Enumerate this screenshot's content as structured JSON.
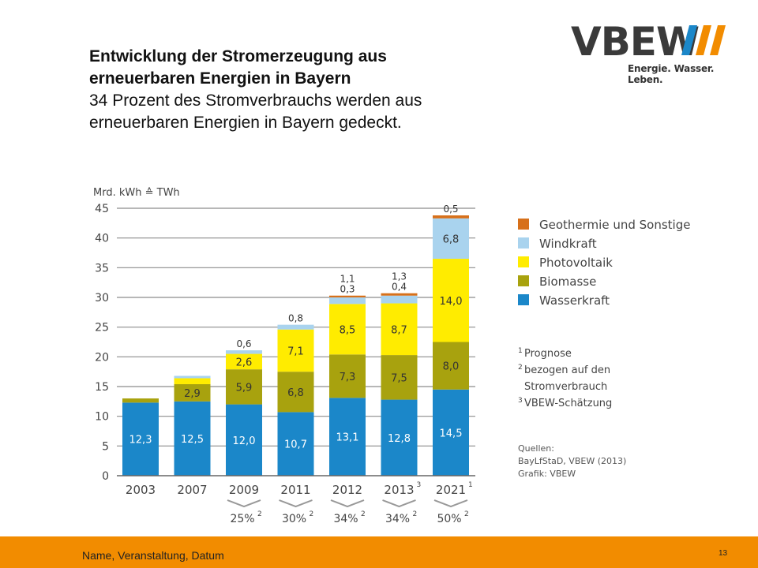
{
  "slide": {
    "title_line1": "Entwicklung der Stromerzeugung aus",
    "title_line2": "erneuerbaren Energien in Bayern",
    "subtitle_line1": "34 Prozent des Stromverbrauchs werden aus",
    "subtitle_line2": "erneuerbaren Energien in Bayern gedeckt."
  },
  "logo": {
    "text": "VBEW",
    "tagline": "Energie. Wasser. Leben.",
    "color": "#3a3a3a",
    "stripe_color": "#f28c00"
  },
  "footer": {
    "text": "Name, Veranstaltung, Datum",
    "page_number": "13",
    "bar_color": "#f28c00"
  },
  "chart_data": {
    "type": "bar",
    "stacked": true,
    "ylabel": "Mrd. kWh ≙ TWh",
    "ylim": [
      0,
      45
    ],
    "yticks": [
      0,
      5,
      10,
      15,
      20,
      25,
      30,
      35,
      40,
      45
    ],
    "grid": true,
    "categories": [
      "2003",
      "2007",
      "2009",
      "2011",
      "2012",
      "2013",
      "2021"
    ],
    "category_superscripts": [
      "",
      "",
      "",
      "",
      "",
      "3",
      "1"
    ],
    "percent_labels": [
      "25%",
      "30%",
      "34%",
      "34%",
      "50%"
    ],
    "percent_label_start_index": 2,
    "percent_superscript": "2",
    "series": [
      {
        "name": "Wasserkraft",
        "color": "#1b87c9",
        "values": [
          12.3,
          12.5,
          12.0,
          10.7,
          13.1,
          12.8,
          14.5
        ],
        "labels": [
          "12,3",
          "12,5",
          "12,0",
          "10,7",
          "13,1",
          "12,8",
          "14,5"
        ]
      },
      {
        "name": "Biomasse",
        "color": "#a8a20e",
        "values": [
          0.7,
          2.9,
          5.9,
          6.8,
          7.3,
          7.5,
          8.0
        ],
        "labels": [
          "",
          "2,9",
          "5,9",
          "6,8",
          "7,3",
          "7,5",
          "8,0"
        ]
      },
      {
        "name": "Photovoltaik",
        "color": "#ffec00",
        "values": [
          0.0,
          1.0,
          2.6,
          7.1,
          8.5,
          8.7,
          14.0
        ],
        "labels": [
          "",
          "",
          "2,6",
          "7,1",
          "8,5",
          "8,7",
          "14,0"
        ]
      },
      {
        "name": "Windkraft",
        "color": "#a9d3ee",
        "values": [
          0.0,
          0.4,
          0.6,
          0.8,
          1.1,
          1.3,
          6.8
        ],
        "labels": [
          "",
          "",
          "0,6",
          "0,8",
          "1,1",
          "1,3",
          "6,8"
        ]
      },
      {
        "name": "Geothermie und Sonstige",
        "color": "#d7701a",
        "values": [
          0.0,
          0.0,
          0.0,
          0.0,
          0.3,
          0.4,
          0.5
        ],
        "labels": [
          "",
          "",
          "",
          "",
          "0,3",
          "0,4",
          "0,5"
        ]
      }
    ],
    "legend_order": [
      "Geothermie und Sonstige",
      "Windkraft",
      "Photovoltaik",
      "Biomasse",
      "Wasserkraft"
    ],
    "legend_position": "right",
    "notes": [
      {
        "sup": "1",
        "lines": [
          "Prognose"
        ]
      },
      {
        "sup": "2",
        "lines": [
          "bezogen auf den",
          "Stromverbrauch"
        ]
      },
      {
        "sup": "3",
        "lines": [
          "VBEW-Schätzung"
        ]
      }
    ],
    "sources": [
      "Quellen:",
      "BayLfStaD, VBEW (2013)",
      "Grafik: VBEW"
    ]
  }
}
